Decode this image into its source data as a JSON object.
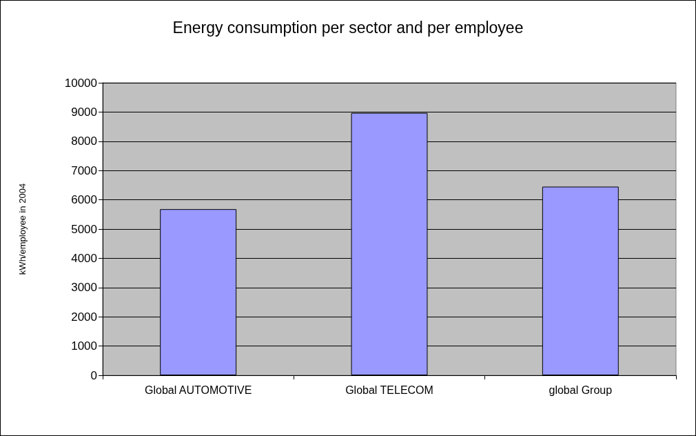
{
  "chart_data": {
    "type": "bar",
    "title": "Energy consumption per sector and per employee",
    "ylabel": "kWh/employee in 2004",
    "categories": [
      "Global AUTOMOTIVE",
      "Global TELECOM",
      "global Group"
    ],
    "values": [
      5680,
      8970,
      6450
    ],
    "color": "#9999ff",
    "ylim": [
      0,
      10000
    ],
    "yticks": [
      0,
      1000,
      2000,
      3000,
      4000,
      5000,
      6000,
      7000,
      8000,
      9000,
      10000
    ],
    "grid": "y"
  }
}
